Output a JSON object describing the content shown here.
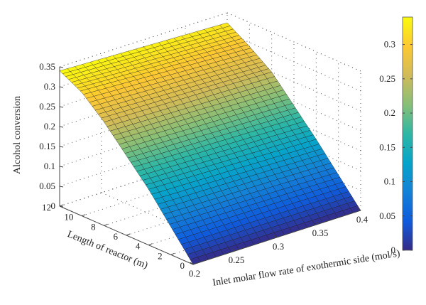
{
  "chart_data": {
    "type": "surface",
    "title": "",
    "xlabel": "Inlet molar flow rate of exothermic side (mol/s)",
    "ylabel": "Length of reactor (m)",
    "zlabel": "Alcohol conversion",
    "xlim": [
      0.2,
      0.4
    ],
    "ylim": [
      0,
      12
    ],
    "zlim": [
      0,
      0.35
    ],
    "x_ticks": [
      "0.2",
      "0.25",
      "0.3",
      "0.35",
      "0.4"
    ],
    "y_ticks": [
      "0",
      "2",
      "4",
      "6",
      "8",
      "10",
      "12"
    ],
    "z_ticks": [
      "0",
      "0.05",
      "0.1",
      "0.15",
      "0.2",
      "0.25",
      "0.3",
      "0.35"
    ],
    "colormap": "parula",
    "colorbar": {
      "range": [
        0,
        0.34
      ],
      "ticks": [
        "0",
        "0.05",
        "0.1",
        "0.15",
        "0.2",
        "0.25",
        "0.3"
      ]
    },
    "grid": true,
    "surface_profile": {
      "description": "conversion rises with reactor length and is nearly independent of inlet flow rate",
      "length_m": [
        0,
        2,
        4,
        6,
        8,
        10,
        12
      ],
      "conversion_at_x_0_2": [
        0.0,
        0.07,
        0.14,
        0.2,
        0.26,
        0.31,
        0.34
      ],
      "conversion_at_x_0_4": [
        0.0,
        0.065,
        0.13,
        0.19,
        0.25,
        0.29,
        0.325
      ]
    }
  }
}
